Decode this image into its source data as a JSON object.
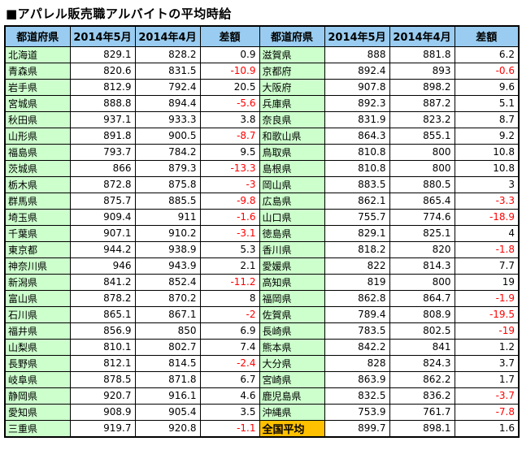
{
  "title": "■アパレル販売職アルバイトの平均時給",
  "colors": {
    "header_bg": "#99CCF0",
    "pref_bg": "#CCFFCC",
    "total_bg": "#FFC000",
    "negative_text": "#FF0000",
    "text": "#000000",
    "border": "#000000"
  },
  "chart_data": {
    "type": "table",
    "title": "■アパレル販売職アルバイトの平均時給",
    "columns": [
      "都道府県",
      "2014年5月",
      "2014年4月",
      "差額"
    ],
    "left_rows": [
      [
        "北海道",
        "829.1",
        "828.2",
        "0.9"
      ],
      [
        "青森県",
        "820.6",
        "831.5",
        "-10.9"
      ],
      [
        "岩手県",
        "812.9",
        "792.4",
        "20.5"
      ],
      [
        "宮城県",
        "888.8",
        "894.4",
        "-5.6"
      ],
      [
        "秋田県",
        "937.1",
        "933.3",
        "3.8"
      ],
      [
        "山形県",
        "891.8",
        "900.5",
        "-8.7"
      ],
      [
        "福島県",
        "793.7",
        "784.2",
        "9.5"
      ],
      [
        "茨城県",
        "866",
        "879.3",
        "-13.3"
      ],
      [
        "栃木県",
        "872.8",
        "875.8",
        "-3"
      ],
      [
        "群馬県",
        "875.7",
        "885.5",
        "-9.8"
      ],
      [
        "埼玉県",
        "909.4",
        "911",
        "-1.6"
      ],
      [
        "千葉県",
        "907.1",
        "910.2",
        "-3.1"
      ],
      [
        "東京都",
        "944.2",
        "938.9",
        "5.3"
      ],
      [
        "神奈川県",
        "946",
        "943.9",
        "2.1"
      ],
      [
        "新潟県",
        "841.2",
        "852.4",
        "-11.2"
      ],
      [
        "富山県",
        "878.2",
        "870.2",
        "8"
      ],
      [
        "石川県",
        "865.1",
        "867.1",
        "-2"
      ],
      [
        "福井県",
        "856.9",
        "850",
        "6.9"
      ],
      [
        "山梨県",
        "810.1",
        "802.7",
        "7.4"
      ],
      [
        "長野県",
        "812.1",
        "814.5",
        "-2.4"
      ],
      [
        "岐阜県",
        "878.5",
        "871.8",
        "6.7"
      ],
      [
        "静岡県",
        "920.7",
        "916.1",
        "4.6"
      ],
      [
        "愛知県",
        "908.9",
        "905.4",
        "3.5"
      ],
      [
        "三重県",
        "919.7",
        "920.8",
        "-1.1"
      ]
    ],
    "right_rows": [
      [
        "滋賀県",
        "888",
        "881.8",
        "6.2"
      ],
      [
        "京都府",
        "892.4",
        "893",
        "-0.6"
      ],
      [
        "大阪府",
        "907.8",
        "898.2",
        "9.6"
      ],
      [
        "兵庫県",
        "892.3",
        "887.2",
        "5.1"
      ],
      [
        "奈良県",
        "831.9",
        "823.2",
        "8.7"
      ],
      [
        "和歌山県",
        "864.3",
        "855.1",
        "9.2"
      ],
      [
        "鳥取県",
        "810.8",
        "800",
        "10.8"
      ],
      [
        "島根県",
        "810.8",
        "800",
        "10.8"
      ],
      [
        "岡山県",
        "883.5",
        "880.5",
        "3"
      ],
      [
        "広島県",
        "862.1",
        "865.4",
        "-3.3"
      ],
      [
        "山口県",
        "755.7",
        "774.6",
        "-18.9"
      ],
      [
        "徳島県",
        "829.1",
        "825.1",
        "4"
      ],
      [
        "香川県",
        "818.2",
        "820",
        "-1.8"
      ],
      [
        "愛媛県",
        "822",
        "814.3",
        "7.7"
      ],
      [
        "高知県",
        "819",
        "800",
        "19"
      ],
      [
        "福岡県",
        "862.8",
        "864.7",
        "-1.9"
      ],
      [
        "佐賀県",
        "789.4",
        "808.9",
        "-19.5"
      ],
      [
        "長崎県",
        "783.5",
        "802.5",
        "-19"
      ],
      [
        "熊本県",
        "842.2",
        "841",
        "1.2"
      ],
      [
        "大分県",
        "828",
        "824.3",
        "3.7"
      ],
      [
        "宮崎県",
        "863.9",
        "862.2",
        "1.7"
      ],
      [
        "鹿児島県",
        "832.5",
        "836.2",
        "-3.7"
      ],
      [
        "沖縄県",
        "753.9",
        "761.7",
        "-7.8"
      ]
    ],
    "total_row": [
      "全国平均",
      "899.7",
      "898.1",
      "1.6"
    ]
  }
}
